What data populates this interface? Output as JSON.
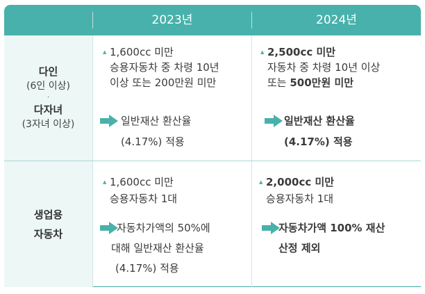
{
  "header": {
    "col1": "",
    "col2": "2023년",
    "col3": "2024년"
  },
  "accent_color": "#48b1ab",
  "rows": [
    {
      "category_lines": [
        "다인",
        "(6인 이상)",
        "·",
        "다자녀",
        "(3자녀 이상)"
      ],
      "y2023": {
        "bullet_lines": [
          "1,600cc 미만",
          "승용자동차 중 차령 10년",
          "이상 또는 200만원 미만"
        ],
        "result_lines": [
          "일반재산 환산율",
          "(4.17%) 적용"
        ]
      },
      "y2024": {
        "bullet_line1": "2,500cc 미만",
        "bullet_line2": "자동차 중 차령 10년 이상",
        "bullet_line3_pre": "또는 ",
        "bullet_line3_bold": "500만원 미만",
        "result_lines": [
          "일반재산 환산율",
          "(4.17%) 적용"
        ]
      }
    },
    {
      "category_lines": [
        "생업용",
        "자동차"
      ],
      "y2023": {
        "bullet_lines": [
          "1,600cc 미만",
          "승용자동차 1대"
        ],
        "result_lines": [
          "자동차가액의 50%에",
          "대해 일반재산 환산율",
          "(4.17%) 적용"
        ]
      },
      "y2024": {
        "bullet_lines": [
          "2,000cc 미만",
          "승용자동차 1대"
        ],
        "result_lines": [
          "자동차가액 100% 재산",
          "산정 제외"
        ]
      }
    }
  ]
}
